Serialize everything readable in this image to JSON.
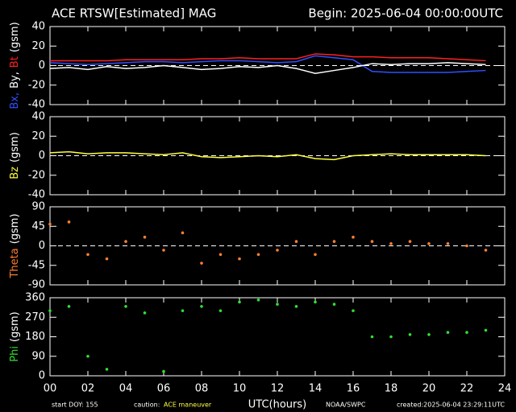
{
  "header": {
    "title": "ACE RTSW[Estimated] MAG",
    "begin": "Begin: 2025-06-04 00:00:00UTC"
  },
  "footer": {
    "doy": "start DOY:  155",
    "caution": "caution:",
    "maneuver": "ACE maneuver",
    "source": "NOAA/SWPC",
    "created": "created:2025-06-04 23:29:11UTC"
  },
  "chart_data": [
    {
      "type": "line",
      "ylabel": [
        {
          "text": "Bx,",
          "color": "#3050ff"
        },
        {
          "text": "By,",
          "color": "#ffffff"
        },
        {
          "text": "Bt",
          "color": "#ff2020"
        },
        {
          "text": "(gsm)",
          "color": "#ffffff"
        }
      ],
      "xlim": [
        0,
        24
      ],
      "ylim": [
        -40,
        40
      ],
      "yticks": [
        -40,
        -20,
        0,
        20,
        40
      ],
      "zero_line": true,
      "x": [
        0,
        1,
        2,
        3,
        4,
        5,
        6,
        7,
        8,
        9,
        10,
        11,
        12,
        13,
        14,
        15,
        16,
        17,
        18,
        19,
        20,
        21,
        22,
        23
      ],
      "series": [
        {
          "name": "Bt",
          "color": "#ff2020",
          "values": [
            5,
            5,
            5,
            5,
            6,
            6,
            6,
            6,
            7,
            7,
            8,
            7,
            7,
            7,
            12,
            11,
            9,
            9,
            8,
            8,
            8,
            7,
            6,
            5
          ]
        },
        {
          "name": "Bx",
          "color": "#3050ff",
          "values": [
            3,
            2,
            1,
            2,
            3,
            4,
            4,
            3,
            4,
            5,
            5,
            4,
            3,
            4,
            10,
            8,
            6,
            -6,
            -7,
            -7,
            -7,
            -7,
            -6,
            -5
          ]
        },
        {
          "name": "By",
          "color": "#ffffff",
          "values": [
            -3,
            -2,
            -4,
            -1,
            -3,
            -2,
            0,
            -2,
            -4,
            -3,
            -1,
            -2,
            0,
            -3,
            -8,
            -5,
            -2,
            2,
            1,
            2,
            2,
            3,
            2,
            1
          ]
        }
      ]
    },
    {
      "type": "line",
      "ylabel": [
        {
          "text": "Bz",
          "color": "#ffff40"
        },
        {
          "text": "(gsm)",
          "color": "#ffffff"
        }
      ],
      "xlim": [
        0,
        24
      ],
      "ylim": [
        -40,
        40
      ],
      "yticks": [
        -40,
        -20,
        0,
        20,
        40
      ],
      "zero_line": true,
      "x": [
        0,
        1,
        2,
        3,
        4,
        5,
        6,
        7,
        8,
        9,
        10,
        11,
        12,
        13,
        14,
        15,
        16,
        17,
        18,
        19,
        20,
        21,
        22,
        23
      ],
      "series": [
        {
          "name": "Bz",
          "color": "#ffff40",
          "values": [
            3,
            4,
            2,
            3,
            3,
            2,
            1,
            3,
            -1,
            -2,
            -1,
            0,
            -1,
            1,
            -3,
            -4,
            0,
            1,
            2,
            1,
            1,
            1,
            1,
            0
          ]
        }
      ]
    },
    {
      "type": "scatter",
      "ylabel": [
        {
          "text": "Theta",
          "color": "#ff8030"
        },
        {
          "text": "(gsm)",
          "color": "#ffffff"
        }
      ],
      "xlim": [
        0,
        24
      ],
      "ylim": [
        -90,
        90
      ],
      "yticks": [
        -90,
        -45,
        0,
        45,
        90
      ],
      "zero_line": true,
      "x": [
        0,
        1,
        2,
        3,
        4,
        5,
        6,
        7,
        8,
        9,
        10,
        11,
        12,
        13,
        14,
        15,
        16,
        17,
        18,
        19,
        20,
        21,
        22,
        23
      ],
      "series": [
        {
          "name": "Theta",
          "color": "#ff8030",
          "values": [
            50,
            55,
            -20,
            -30,
            10,
            20,
            -10,
            30,
            -40,
            -20,
            -30,
            -20,
            -10,
            10,
            -20,
            10,
            20,
            10,
            5,
            10,
            5,
            5,
            0,
            -10
          ]
        }
      ]
    },
    {
      "type": "scatter",
      "ylabel": [
        {
          "text": "Phi",
          "color": "#30e030"
        },
        {
          "text": "(gsm)",
          "color": "#ffffff"
        }
      ],
      "xlim": [
        0,
        24
      ],
      "ylim": [
        0,
        360
      ],
      "yticks": [
        0,
        90,
        180,
        270,
        360
      ],
      "zero_line": false,
      "x": [
        0,
        1,
        2,
        3,
        4,
        5,
        6,
        7,
        8,
        9,
        10,
        11,
        12,
        13,
        14,
        15,
        16,
        17,
        18,
        19,
        20,
        21,
        22,
        23
      ],
      "series": [
        {
          "name": "Phi",
          "color": "#30e030",
          "values": [
            300,
            320,
            90,
            30,
            320,
            290,
            20,
            300,
            320,
            300,
            340,
            350,
            330,
            320,
            340,
            330,
            300,
            180,
            180,
            190,
            190,
            200,
            200,
            210
          ]
        }
      ],
      "xlabel": "UTC(hours)",
      "xticks": [
        {
          "value": 0,
          "label": "00"
        },
        {
          "value": 2,
          "label": "02"
        },
        {
          "value": 4,
          "label": "04"
        },
        {
          "value": 6,
          "label": "06"
        },
        {
          "value": 8,
          "label": "08"
        },
        {
          "value": 10,
          "label": "10"
        },
        {
          "value": 12,
          "label": "12"
        },
        {
          "value": 14,
          "label": "14"
        },
        {
          "value": 16,
          "label": "16"
        },
        {
          "value": 18,
          "label": "18"
        },
        {
          "value": 20,
          "label": "20"
        },
        {
          "value": 22,
          "label": "22"
        },
        {
          "value": 24,
          "label": "24"
        }
      ]
    }
  ]
}
